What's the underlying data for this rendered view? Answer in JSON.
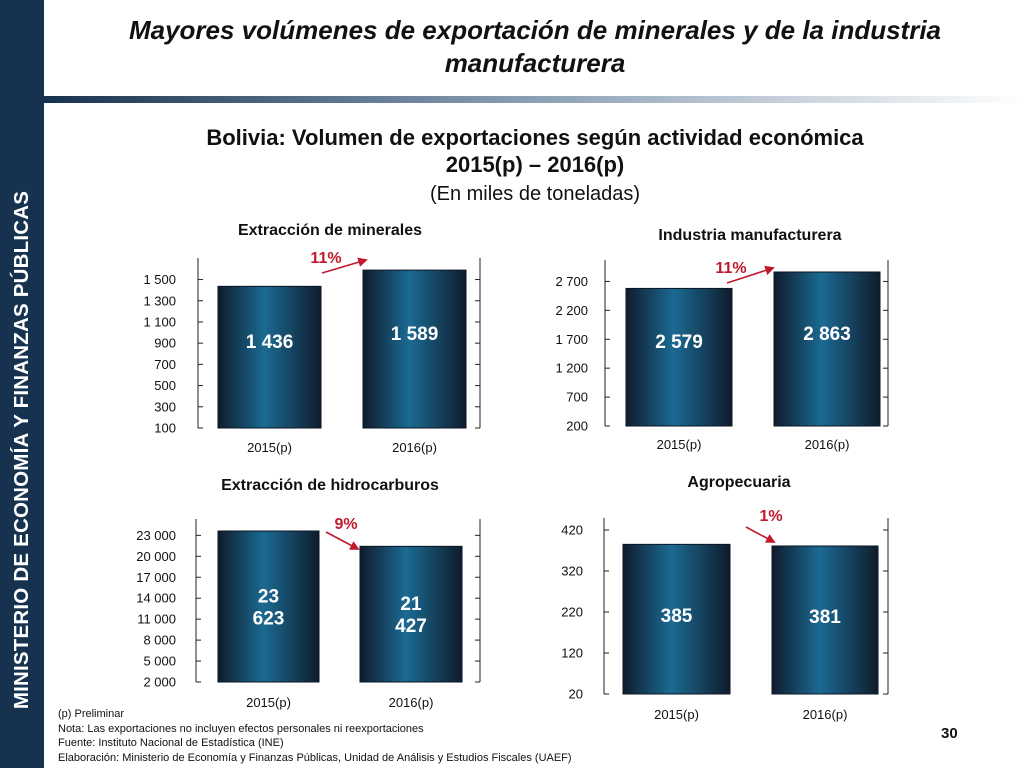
{
  "sidebar": {
    "text": "MINISTERIO DE ECONOMÍA Y FINANZAS PÚBLICAS"
  },
  "header": {
    "title_line1": "Mayores volúmenes de exportación de minerales y de la industria",
    "title_line2": "manufacturera"
  },
  "subtitle": {
    "line1": "Bolivia: Volumen de exportaciones según actividad económica",
    "line2": "2015(p) – 2016(p)",
    "units": "(En miles de toneladas)"
  },
  "colors": {
    "bar_dark": "#0f1c2c",
    "bar_light": "#1b6a93",
    "growth_label": "#c0192c",
    "arrow": "#c0192c"
  },
  "chart_data": [
    {
      "type": "bar",
      "title": "Extracción de minerales",
      "categories": [
        "2015(p)",
        "2016(p)"
      ],
      "values": [
        1436,
        1589
      ],
      "value_labels": [
        "1 436",
        "1 589"
      ],
      "ylim": [
        100,
        1590
      ],
      "yticks": [
        100,
        300,
        500,
        700,
        900,
        1100,
        1300,
        1500
      ],
      "ytick_labels": [
        "100",
        "300",
        "500",
        "700",
        "900",
        "1 100",
        "1 300",
        "1 500"
      ],
      "change_label": "11%",
      "direction": "up"
    },
    {
      "type": "bar",
      "title": "Industria manufacturera",
      "categories": [
        "2015(p)",
        "2016(p)"
      ],
      "values": [
        2579,
        2863
      ],
      "value_labels": [
        "2 579",
        "2 863"
      ],
      "ylim": [
        200,
        2863
      ],
      "yticks": [
        200,
        700,
        1200,
        1700,
        2200,
        2700
      ],
      "ytick_labels": [
        "200",
        "700",
        "1 200",
        "1 700",
        "2 200",
        "2 700"
      ],
      "change_label": "11%",
      "direction": "up"
    },
    {
      "type": "bar",
      "title": "Extracción de hidrocarburos",
      "categories": [
        "2015(p)",
        "2016(p)"
      ],
      "values": [
        23623,
        21427
      ],
      "value_labels": [
        "23\n623",
        "21\n427"
      ],
      "ylim": [
        2000,
        23623
      ],
      "yticks": [
        2000,
        5000,
        8000,
        11000,
        14000,
        17000,
        20000,
        23000
      ],
      "ytick_labels": [
        "2 000",
        "5 000",
        "8 000",
        "11 000",
        "14 000",
        "17 000",
        "20 000",
        "23 000"
      ],
      "change_label": "9%",
      "direction": "down"
    },
    {
      "type": "bar",
      "title": "Agropecuaria",
      "categories": [
        "2015(p)",
        "2016(p)"
      ],
      "values": [
        385,
        381
      ],
      "value_labels": [
        "385",
        "381"
      ],
      "ylim": [
        20,
        420
      ],
      "yticks": [
        20,
        120,
        220,
        320,
        420
      ],
      "ytick_labels": [
        "20",
        "120",
        "220",
        "320",
        "420"
      ],
      "change_label": "1%",
      "direction": "down"
    }
  ],
  "footnotes": {
    "preliminar": "(p) Preliminar",
    "nota": "Nota: Las exportaciones no incluyen efectos personales ni reexportaciones",
    "fuente": "Fuente: Instituto Nacional de Estadística (INE)",
    "elaboracion": "Elaboración: Ministerio de Economía y Finanzas Públicas, Unidad de Análisis y Estudios Fiscales (UAEF)"
  },
  "page_number": "30"
}
